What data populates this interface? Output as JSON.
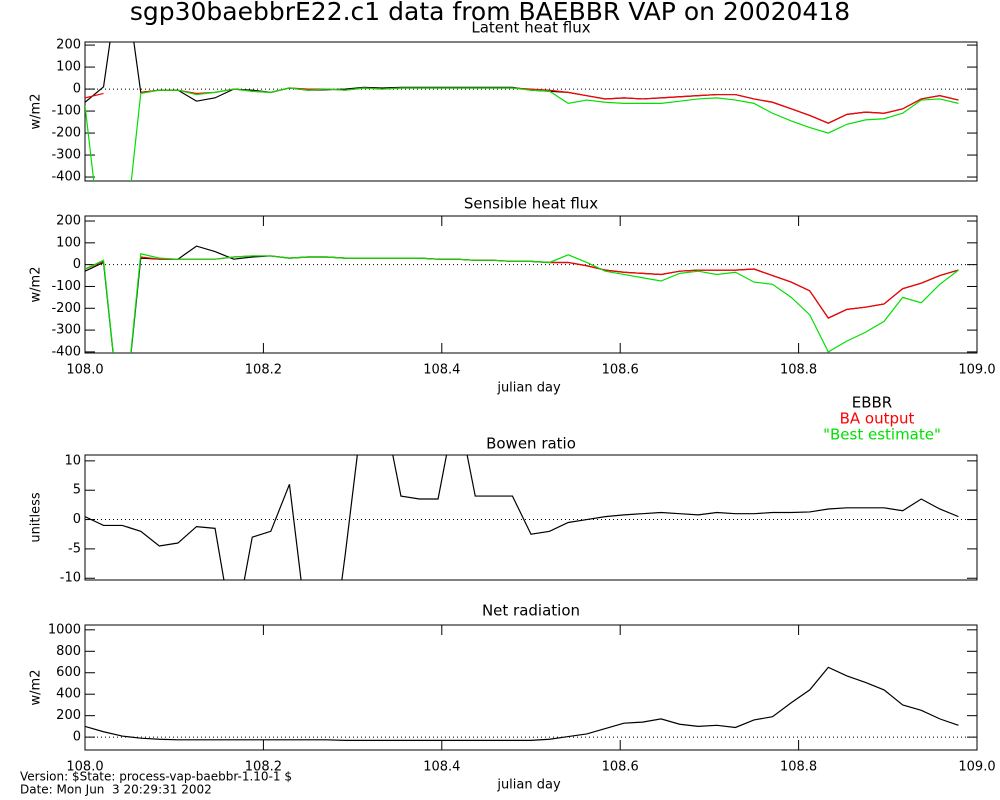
{
  "header": {
    "title": "sgp30baebbrE22.c1 data from BAEBBR VAP on 20020418"
  },
  "footer": {
    "version": "Version: $State: process-vap-baebbr-1.10-1 $",
    "date": "Date: Mon Jun  3 20:29:31 2002"
  },
  "chart_data": [
    {
      "type": "line",
      "title": "Latent heat flux",
      "ylabel": "w/m2",
      "xlim": [
        108,
        109
      ],
      "ylim": [
        -418,
        214
      ],
      "yticks": [
        200,
        100,
        0,
        -100,
        -200,
        -300,
        -400
      ],
      "x": [
        108,
        108.0208,
        108.0417,
        108.0625,
        108.0833,
        108.1042,
        108.125,
        108.1458,
        108.1667,
        108.1875,
        108.2083,
        108.2292,
        108.25,
        108.2708,
        108.2917,
        108.3125,
        108.3333,
        108.3542,
        108.375,
        108.3958,
        108.4167,
        108.4375,
        108.4583,
        108.4792,
        108.5,
        108.5208,
        108.5417,
        108.5625,
        108.5833,
        108.6042,
        108.625,
        108.6458,
        108.6667,
        108.6875,
        108.7083,
        108.7292,
        108.75,
        108.7708,
        108.7917,
        108.8125,
        108.8333,
        108.8542,
        108.875,
        108.8958,
        108.9167,
        108.9375,
        108.9583,
        108.9792
      ],
      "series": [
        {
          "color": "#000000",
          "values": [
            -60,
            10,
            600,
            -15,
            -5,
            -5,
            -55,
            -40,
            0,
            -5,
            -15,
            5,
            -5,
            -3,
            0,
            8,
            5,
            8,
            8,
            8,
            8,
            8,
            8,
            8,
            -5,
            -10,
            -15,
            -30,
            -45,
            -40,
            -45,
            -40,
            -35,
            -30,
            -25,
            -25,
            -45,
            -60,
            -90,
            -120,
            -155,
            -115,
            -105,
            -110,
            -90,
            -45,
            -30,
            -50
          ]
        },
        {
          "color": "#ff0000",
          "values": [
            -40,
            -20,
            null,
            -15,
            -5,
            -5,
            -20,
            -15,
            0,
            -10,
            -15,
            5,
            0,
            0,
            -5,
            5,
            0,
            5,
            5,
            5,
            5,
            5,
            5,
            5,
            0,
            -5,
            -15,
            -30,
            -45,
            -40,
            -45,
            -40,
            -35,
            -30,
            -25,
            -25,
            -45,
            -60,
            -90,
            -120,
            -155,
            -115,
            -105,
            -110,
            -90,
            -45,
            -30,
            -50
          ]
        },
        {
          "color": "#00e000",
          "values": [
            -75,
            -800,
            -800,
            -20,
            -5,
            -5,
            -25,
            -15,
            0,
            -10,
            -15,
            5,
            -5,
            0,
            -5,
            5,
            0,
            5,
            5,
            5,
            5,
            5,
            5,
            5,
            -5,
            -10,
            -65,
            -50,
            -60,
            -65,
            -65,
            -65,
            -55,
            -45,
            -40,
            -50,
            -65,
            -110,
            -145,
            -175,
            -200,
            -160,
            -140,
            -135,
            -110,
            -50,
            -45,
            -65
          ]
        }
      ]
    },
    {
      "type": "line",
      "title": "Sensible heat flux",
      "ylabel": "w/m2",
      "xlabel": "julian day",
      "xlim": [
        108,
        109
      ],
      "xticks": [
        {
          "value": 108,
          "label": "108.0"
        },
        {
          "value": 108.2,
          "label": "108.2"
        },
        {
          "value": 108.4,
          "label": "108.4"
        },
        {
          "value": 108.6,
          "label": "108.6"
        },
        {
          "value": 108.8,
          "label": "108.8"
        },
        {
          "value": 109,
          "label": "109.0"
        }
      ],
      "ylim": [
        -405,
        223
      ],
      "yticks": [
        200,
        100,
        0,
        -100,
        -200,
        -300,
        -400
      ],
      "x": [
        108,
        108.0208,
        108.0417,
        108.0625,
        108.0833,
        108.1042,
        108.125,
        108.1458,
        108.1667,
        108.1875,
        108.2083,
        108.2292,
        108.25,
        108.2708,
        108.2917,
        108.3125,
        108.3333,
        108.3542,
        108.375,
        108.3958,
        108.4167,
        108.4375,
        108.4583,
        108.4792,
        108.5,
        108.5208,
        108.5417,
        108.5625,
        108.5833,
        108.6042,
        108.625,
        108.6458,
        108.6667,
        108.6875,
        108.7083,
        108.7292,
        108.75,
        108.7708,
        108.7917,
        108.8125,
        108.8333,
        108.8542,
        108.875,
        108.8958,
        108.9167,
        108.9375,
        108.9583,
        108.9792
      ],
      "series": [
        {
          "name": "EBBR",
          "color": "#000000",
          "values": [
            -30,
            10,
            -800,
            30,
            25,
            25,
            85,
            60,
            25,
            35,
            40,
            30,
            35,
            35,
            30,
            30,
            30,
            30,
            30,
            25,
            25,
            20,
            20,
            15,
            15,
            10,
            10,
            -5,
            -25,
            -35,
            -40,
            -45,
            -30,
            -25,
            -25,
            -25,
            -20,
            -50,
            -80,
            -120,
            -245,
            -205,
            -195,
            -180,
            -110,
            -85,
            -50,
            -25
          ]
        },
        {
          "name": "BA output",
          "color": "#ff0000",
          "values": [
            -20,
            15,
            null,
            35,
            25,
            25,
            25,
            25,
            35,
            40,
            40,
            30,
            35,
            35,
            30,
            30,
            30,
            30,
            30,
            25,
            25,
            20,
            20,
            15,
            15,
            10,
            10,
            -5,
            -25,
            -35,
            -40,
            -45,
            -30,
            -25,
            -25,
            -25,
            -20,
            -50,
            -80,
            -120,
            -245,
            -205,
            -195,
            -180,
            -110,
            -85,
            -50,
            -25
          ]
        },
        {
          "name": "\"Best estimate\"",
          "color": "#00e000",
          "values": [
            -20,
            20,
            -800,
            50,
            30,
            25,
            25,
            25,
            35,
            40,
            40,
            30,
            35,
            35,
            30,
            30,
            30,
            30,
            30,
            25,
            25,
            20,
            20,
            15,
            15,
            10,
            45,
            10,
            -30,
            -45,
            -60,
            -75,
            -40,
            -30,
            -45,
            -35,
            -80,
            -90,
            -150,
            -230,
            -400,
            -350,
            -310,
            -260,
            -150,
            -175,
            -90,
            -25
          ]
        }
      ]
    },
    {
      "type": "line",
      "title": "Bowen ratio",
      "ylabel": "unitless",
      "xlim": [
        108,
        109
      ],
      "ylim": [
        -10.3,
        11
      ],
      "yticks": [
        10,
        5,
        0,
        -5,
        -10
      ],
      "x": [
        108,
        108.0208,
        108.0417,
        108.0625,
        108.0833,
        108.1042,
        108.125,
        108.1458,
        108.1667,
        108.1875,
        108.2083,
        108.2292,
        108.25,
        108.2708,
        108.2917,
        108.3125,
        108.3333,
        108.3542,
        108.375,
        108.3958,
        108.4167,
        108.4375,
        108.4583,
        108.4792,
        108.5,
        108.5208,
        108.5417,
        108.5625,
        108.5833,
        108.6042,
        108.625,
        108.6458,
        108.6667,
        108.6875,
        108.7083,
        108.7292,
        108.75,
        108.7708,
        108.7917,
        108.8125,
        108.8333,
        108.8542,
        108.875,
        108.8958,
        108.9167,
        108.9375,
        108.9583,
        108.9792
      ],
      "series": [
        {
          "color": "#000000",
          "values": [
            0.5,
            -1,
            -1,
            -2,
            -4.5,
            -4,
            -1.2,
            -1.5,
            -20,
            -3,
            -2,
            6,
            -20,
            -30,
            -6,
            20,
            20,
            4,
            3.5,
            3.5,
            20,
            4,
            4,
            4,
            -2.5,
            -2,
            -0.5,
            0,
            0.5,
            0.8,
            1,
            1.2,
            1,
            0.8,
            1.2,
            1,
            1,
            1.2,
            1.2,
            1.3,
            1.8,
            2,
            2,
            2,
            1.5,
            3.5,
            1.8,
            0.5
          ]
        }
      ]
    },
    {
      "type": "line",
      "title": "Net radiation",
      "ylabel": "w/m2",
      "xlabel": "julian day",
      "xlim": [
        108,
        109
      ],
      "xticks": [
        {
          "value": 108,
          "label": "108.0"
        },
        {
          "value": 108.2,
          "label": "108.2"
        },
        {
          "value": 108.4,
          "label": "108.4"
        },
        {
          "value": 108.6,
          "label": "108.6"
        },
        {
          "value": 108.8,
          "label": "108.8"
        },
        {
          "value": 109,
          "label": "109.0"
        }
      ],
      "ylim": [
        -120,
        1045
      ],
      "yticks": [
        1000,
        800,
        600,
        400,
        200,
        0
      ],
      "x": [
        108,
        108.0208,
        108.0417,
        108.0625,
        108.0833,
        108.1042,
        108.125,
        108.1458,
        108.1667,
        108.1875,
        108.2083,
        108.2292,
        108.25,
        108.2708,
        108.2917,
        108.3125,
        108.3333,
        108.3542,
        108.375,
        108.3958,
        108.4167,
        108.4375,
        108.4583,
        108.4792,
        108.5,
        108.5208,
        108.5417,
        108.5625,
        108.5833,
        108.6042,
        108.625,
        108.6458,
        108.6667,
        108.6875,
        108.7083,
        108.7292,
        108.75,
        108.7708,
        108.7917,
        108.8125,
        108.8333,
        108.8542,
        108.875,
        108.8958,
        108.9167,
        108.9375,
        108.9583,
        108.9792
      ],
      "series": [
        {
          "color": "#000000",
          "values": [
            100,
            50,
            10,
            -10,
            -20,
            -25,
            -25,
            -25,
            -25,
            -25,
            -25,
            -25,
            -25,
            -25,
            -30,
            -30,
            -30,
            -30,
            -30,
            -30,
            -30,
            -30,
            -30,
            -30,
            -30,
            -20,
            5,
            30,
            80,
            130,
            140,
            170,
            120,
            100,
            110,
            90,
            160,
            190,
            320,
            440,
            650,
            570,
            510,
            440,
            300,
            250,
            170,
            110
          ]
        }
      ]
    }
  ]
}
